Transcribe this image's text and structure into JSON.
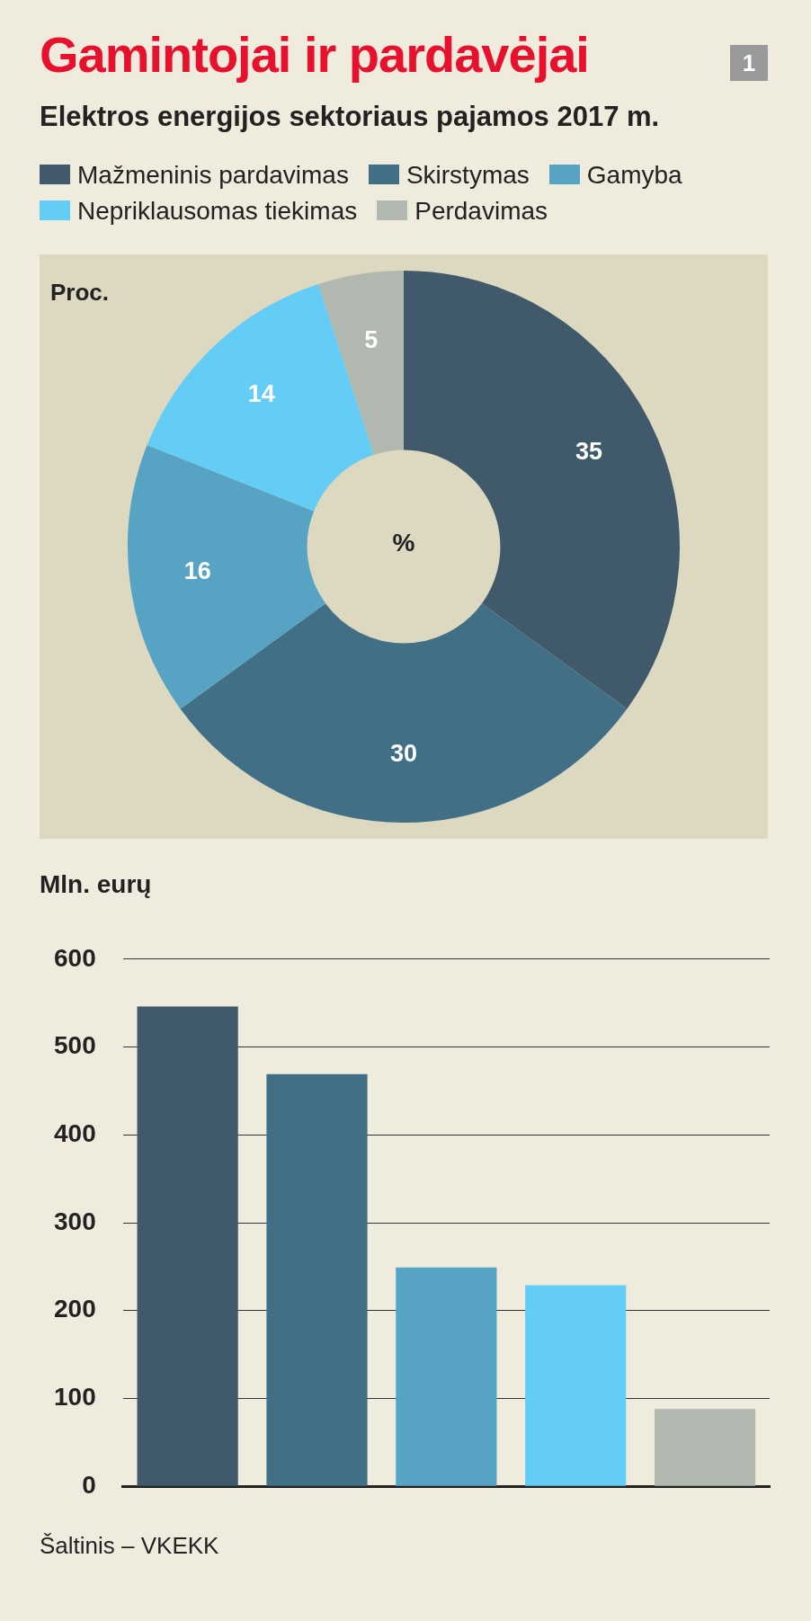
{
  "chart_data": [
    {
      "type": "donut",
      "title": "Gamintojai ir pardavėjai",
      "subtitle": "Elektros energijos sektoriaus pajamos 2017 m.",
      "categories": [
        "Mažmeninis pardavimas",
        "Skirstymas",
        "Gamyba",
        "Nepriklausomas tiekimas",
        "Perdavimas"
      ],
      "values": [
        35,
        30,
        16,
        14,
        5
      ],
      "colors": [
        "#415a6b",
        "#416f86",
        "#56a3c4",
        "#63cdf5",
        "#b0b8b0"
      ],
      "legend": "top",
      "data_labels": true,
      "annotations": [
        "1",
        "Proc.",
        "%"
      ]
    },
    {
      "type": "bar",
      "ylabel": "Mln. eurų",
      "categories": [
        null,
        null,
        null,
        null,
        null
      ],
      "values": [
        546,
        469,
        249,
        229,
        88
      ],
      "colors": [
        "#415a6b",
        "#416f86",
        "#56a3c4",
        "#63cdf5",
        "#b0b8b0"
      ],
      "ylim": [
        0,
        600
      ],
      "yticks": [
        0,
        100,
        200,
        300,
        400,
        500,
        600
      ],
      "grid": "y",
      "annotations": [
        "Šaltinis – VKEKK"
      ]
    }
  ]
}
